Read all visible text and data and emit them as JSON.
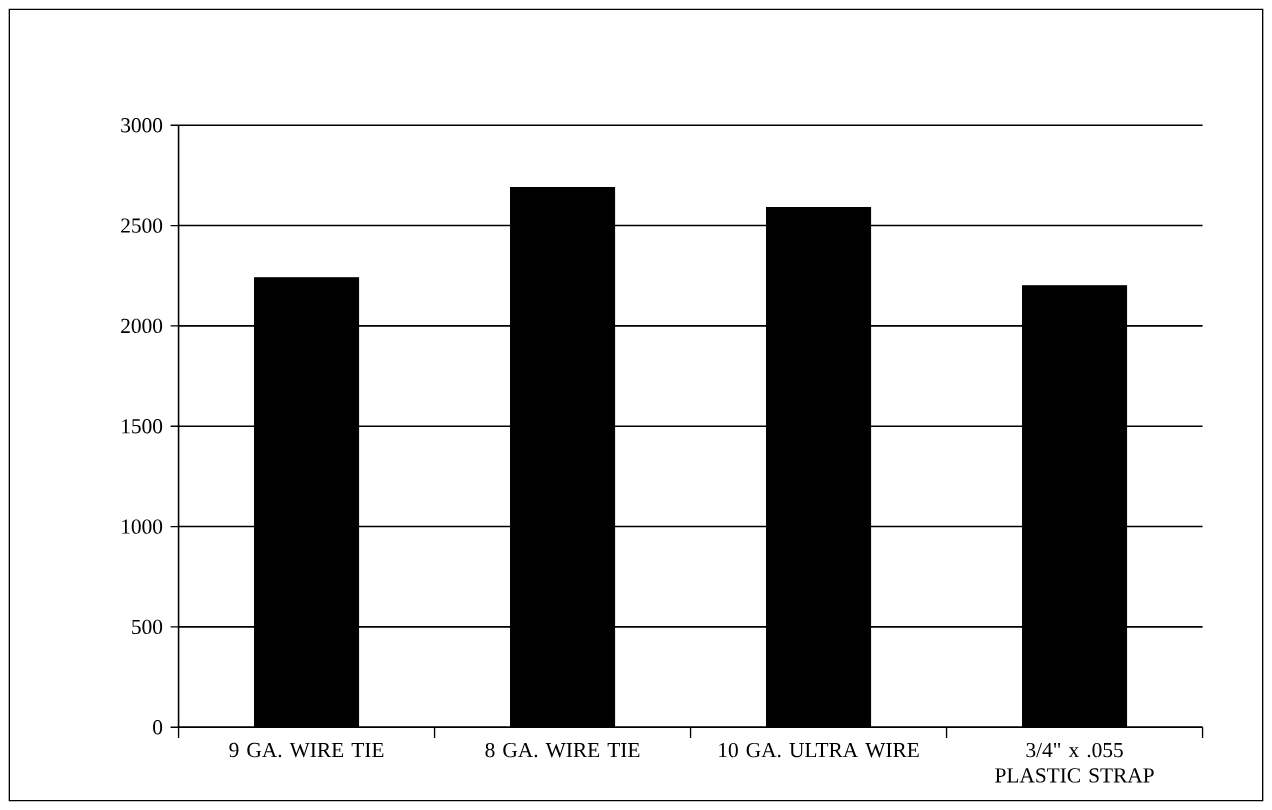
{
  "chart_data": {
    "type": "bar",
    "categories": [
      "9 GA. WIRE TIE",
      "8 GA. WIRE TIE",
      "10 GA. ULTRA WIRE",
      "3/4\" x .055 PLASTIC STRAP"
    ],
    "values": [
      2240,
      2690,
      2590,
      2200
    ],
    "color": "#000000",
    "ylim": [
      0,
      3000
    ],
    "yticks": [
      0,
      500,
      1000,
      1500,
      2000,
      2500,
      3000
    ],
    "grid": "y"
  }
}
